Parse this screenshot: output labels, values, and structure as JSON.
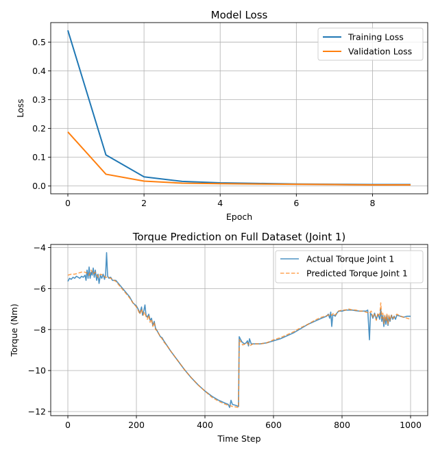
{
  "chart_data": [
    {
      "type": "line",
      "title": "Model Loss",
      "xlabel": "Epoch",
      "ylabel": "Loss",
      "xlim": [
        -0.45,
        9.45
      ],
      "ylim": [
        -0.027,
        0.568
      ],
      "xticks": [
        0,
        2,
        4,
        6,
        8
      ],
      "xtick_labels": [
        "0",
        "2",
        "4",
        "6",
        "8"
      ],
      "yticks": [
        0.0,
        0.1,
        0.2,
        0.3,
        0.4,
        0.5
      ],
      "ytick_labels": [
        "0.0",
        "0.1",
        "0.2",
        "0.3",
        "0.4",
        "0.5"
      ],
      "grid": true,
      "legend_position": "top-right",
      "x": [
        0,
        1,
        2,
        3,
        4,
        5,
        6,
        7,
        8,
        9
      ],
      "series": [
        {
          "name": "Training Loss",
          "color": "#1f77b4",
          "style": "solid",
          "values": [
            0.541,
            0.108,
            0.032,
            0.016,
            0.011,
            0.009,
            0.007,
            0.006,
            0.005,
            0.005
          ]
        },
        {
          "name": "Validation Loss",
          "color": "#ff7f0e",
          "style": "solid",
          "values": [
            0.188,
            0.041,
            0.017,
            0.01,
            0.008,
            0.007,
            0.006,
            0.005,
            0.004,
            0.004
          ]
        }
      ]
    },
    {
      "type": "line",
      "title": "Torque Prediction on Full Dataset (Joint 1)",
      "xlabel": "Time Step",
      "ylabel": "Torque (Nm)",
      "xlim": [
        -50,
        1050
      ],
      "ylim": [
        -12.2,
        -3.85
      ],
      "xticks": [
        0,
        200,
        400,
        600,
        800,
        1000
      ],
      "xtick_labels": [
        "0",
        "200",
        "400",
        "600",
        "800",
        "1000"
      ],
      "yticks": [
        -12,
        -10,
        -8,
        -6,
        -4
      ],
      "ytick_labels": [
        "−12",
        "−10",
        "−8",
        "−6",
        "−4"
      ],
      "grid": true,
      "legend_position": "top-right",
      "series": [
        {
          "name": "Actual Torque Joint 1",
          "color": "#1f77b4",
          "style": "solid",
          "points": [
            [
              0,
              -5.65
            ],
            [
              5,
              -5.5
            ],
            [
              10,
              -5.55
            ],
            [
              15,
              -5.45
            ],
            [
              20,
              -5.5
            ],
            [
              25,
              -5.4
            ],
            [
              30,
              -5.45
            ],
            [
              35,
              -5.5
            ],
            [
              40,
              -5.4
            ],
            [
              45,
              -5.45
            ],
            [
              50,
              -5.35
            ],
            [
              53,
              -5.6
            ],
            [
              56,
              -5.1
            ],
            [
              59,
              -5.5
            ],
            [
              62,
              -4.95
            ],
            [
              65,
              -5.5
            ],
            [
              68,
              -5.2
            ],
            [
              71,
              -5.35
            ],
            [
              74,
              -5.0
            ],
            [
              77,
              -5.45
            ],
            [
              80,
              -5.1
            ],
            [
              84,
              -5.6
            ],
            [
              88,
              -5.3
            ],
            [
              91,
              -5.75
            ],
            [
              95,
              -5.35
            ],
            [
              99,
              -5.5
            ],
            [
              103,
              -5.3
            ],
            [
              107,
              -5.55
            ],
            [
              110,
              -5.35
            ],
            [
              113,
              -4.25
            ],
            [
              116,
              -5.4
            ],
            [
              120,
              -5.5
            ],
            [
              125,
              -5.45
            ],
            [
              130,
              -5.6
            ],
            [
              140,
              -5.6
            ],
            [
              150,
              -5.8
            ],
            [
              160,
              -6.0
            ],
            [
              170,
              -6.2
            ],
            [
              180,
              -6.4
            ],
            [
              190,
              -6.7
            ],
            [
              200,
              -6.85
            ],
            [
              205,
              -7.0
            ],
            [
              210,
              -7.2
            ],
            [
              215,
              -6.9
            ],
            [
              218,
              -7.3
            ],
            [
              222,
              -7.05
            ],
            [
              225,
              -6.8
            ],
            [
              228,
              -7.3
            ],
            [
              232,
              -7.4
            ],
            [
              236,
              -7.25
            ],
            [
              240,
              -7.55
            ],
            [
              244,
              -7.45
            ],
            [
              248,
              -7.8
            ],
            [
              252,
              -7.6
            ],
            [
              256,
              -7.95
            ],
            [
              260,
              -8.05
            ],
            [
              265,
              -8.2
            ],
            [
              270,
              -8.35
            ],
            [
              275,
              -8.4
            ],
            [
              280,
              -8.55
            ],
            [
              290,
              -8.8
            ],
            [
              300,
              -9.05
            ],
            [
              320,
              -9.5
            ],
            [
              340,
              -9.95
            ],
            [
              360,
              -10.35
            ],
            [
              380,
              -10.7
            ],
            [
              400,
              -11.0
            ],
            [
              420,
              -11.25
            ],
            [
              440,
              -11.45
            ],
            [
              460,
              -11.6
            ],
            [
              468,
              -11.65
            ],
            [
              472,
              -11.8
            ],
            [
              476,
              -11.45
            ],
            [
              480,
              -11.65
            ],
            [
              490,
              -11.7
            ],
            [
              498,
              -11.75
            ],
            [
              500,
              -8.35
            ],
            [
              503,
              -8.45
            ],
            [
              508,
              -8.6
            ],
            [
              515,
              -8.7
            ],
            [
              520,
              -8.65
            ],
            [
              524,
              -8.55
            ],
            [
              527,
              -8.8
            ],
            [
              530,
              -8.45
            ],
            [
              535,
              -8.7
            ],
            [
              545,
              -8.7
            ],
            [
              560,
              -8.7
            ],
            [
              580,
              -8.65
            ],
            [
              600,
              -8.55
            ],
            [
              620,
              -8.45
            ],
            [
              640,
              -8.3
            ],
            [
              660,
              -8.15
            ],
            [
              680,
              -7.95
            ],
            [
              700,
              -7.75
            ],
            [
              720,
              -7.6
            ],
            [
              740,
              -7.45
            ],
            [
              755,
              -7.35
            ],
            [
              760,
              -7.25
            ],
            [
              764,
              -7.45
            ],
            [
              767,
              -7.15
            ],
            [
              770,
              -7.85
            ],
            [
              773,
              -7.3
            ],
            [
              777,
              -7.3
            ],
            [
              780,
              -7.35
            ],
            [
              785,
              -7.2
            ],
            [
              790,
              -7.1
            ],
            [
              800,
              -7.1
            ],
            [
              810,
              -7.05
            ],
            [
              820,
              -7.05
            ],
            [
              830,
              -7.05
            ],
            [
              840,
              -7.08
            ],
            [
              850,
              -7.1
            ],
            [
              860,
              -7.1
            ],
            [
              870,
              -7.1
            ],
            [
              875,
              -7.05
            ],
            [
              880,
              -8.5
            ],
            [
              883,
              -7.2
            ],
            [
              887,
              -7.3
            ],
            [
              890,
              -7.45
            ],
            [
              895,
              -7.2
            ],
            [
              900,
              -7.5
            ],
            [
              905,
              -7.25
            ],
            [
              910,
              -7.5
            ],
            [
              913,
              -7.0
            ],
            [
              916,
              -7.6
            ],
            [
              919,
              -7.3
            ],
            [
              922,
              -7.85
            ],
            [
              925,
              -7.35
            ],
            [
              928,
              -7.75
            ],
            [
              931,
              -7.3
            ],
            [
              934,
              -7.8
            ],
            [
              937,
              -7.35
            ],
            [
              940,
              -7.6
            ],
            [
              944,
              -7.3
            ],
            [
              948,
              -7.5
            ],
            [
              952,
              -7.35
            ],
            [
              956,
              -7.5
            ],
            [
              960,
              -7.3
            ],
            [
              970,
              -7.35
            ],
            [
              980,
              -7.4
            ],
            [
              990,
              -7.35
            ],
            [
              1000,
              -7.35
            ]
          ]
        },
        {
          "name": "Predicted Torque Joint 1",
          "color": "#ff7f0e",
          "style": "dashed",
          "points": [
            [
              0,
              -5.35
            ],
            [
              10,
              -5.3
            ],
            [
              20,
              -5.3
            ],
            [
              30,
              -5.25
            ],
            [
              40,
              -5.2
            ],
            [
              50,
              -5.2
            ],
            [
              56,
              -5.25
            ],
            [
              62,
              -5.35
            ],
            [
              68,
              -5.1
            ],
            [
              74,
              -5.3
            ],
            [
              80,
              -5.2
            ],
            [
              88,
              -5.45
            ],
            [
              95,
              -5.3
            ],
            [
              103,
              -5.35
            ],
            [
              110,
              -5.45
            ],
            [
              120,
              -5.45
            ],
            [
              130,
              -5.55
            ],
            [
              140,
              -5.65
            ],
            [
              150,
              -5.85
            ],
            [
              160,
              -6.05
            ],
            [
              170,
              -6.25
            ],
            [
              180,
              -6.45
            ],
            [
              190,
              -6.7
            ],
            [
              200,
              -6.9
            ],
            [
              205,
              -7.05
            ],
            [
              210,
              -7.25
            ],
            [
              215,
              -7.0
            ],
            [
              220,
              -7.3
            ],
            [
              224,
              -7.15
            ],
            [
              228,
              -7.35
            ],
            [
              232,
              -7.5
            ],
            [
              236,
              -7.3
            ],
            [
              240,
              -7.65
            ],
            [
              244,
              -7.5
            ],
            [
              248,
              -7.85
            ],
            [
              252,
              -7.65
            ],
            [
              256,
              -8.0
            ],
            [
              260,
              -8.05
            ],
            [
              265,
              -8.2
            ],
            [
              270,
              -8.35
            ],
            [
              275,
              -8.45
            ],
            [
              280,
              -8.6
            ],
            [
              290,
              -8.8
            ],
            [
              300,
              -9.05
            ],
            [
              320,
              -9.5
            ],
            [
              340,
              -9.95
            ],
            [
              360,
              -10.35
            ],
            [
              380,
              -10.7
            ],
            [
              400,
              -11.0
            ],
            [
              420,
              -11.3
            ],
            [
              440,
              -11.5
            ],
            [
              460,
              -11.65
            ],
            [
              480,
              -11.75
            ],
            [
              498,
              -11.8
            ],
            [
              500,
              -8.5
            ],
            [
              505,
              -8.6
            ],
            [
              510,
              -8.75
            ],
            [
              518,
              -8.7
            ],
            [
              525,
              -8.65
            ],
            [
              530,
              -8.8
            ],
            [
              540,
              -8.7
            ],
            [
              560,
              -8.7
            ],
            [
              580,
              -8.65
            ],
            [
              600,
              -8.5
            ],
            [
              620,
              -8.4
            ],
            [
              640,
              -8.25
            ],
            [
              660,
              -8.1
            ],
            [
              680,
              -7.9
            ],
            [
              700,
              -7.75
            ],
            [
              720,
              -7.55
            ],
            [
              740,
              -7.4
            ],
            [
              760,
              -7.3
            ],
            [
              765,
              -7.25
            ],
            [
              770,
              -7.3
            ],
            [
              775,
              -7.2
            ],
            [
              780,
              -7.3
            ],
            [
              790,
              -7.1
            ],
            [
              800,
              -7.05
            ],
            [
              810,
              -7.05
            ],
            [
              820,
              -7.0
            ],
            [
              830,
              -7.05
            ],
            [
              840,
              -7.05
            ],
            [
              850,
              -7.1
            ],
            [
              860,
              -7.1
            ],
            [
              870,
              -7.15
            ],
            [
              880,
              -7.2
            ],
            [
              885,
              -7.1
            ],
            [
              890,
              -7.4
            ],
            [
              895,
              -7.25
            ],
            [
              900,
              -7.55
            ],
            [
              905,
              -7.2
            ],
            [
              910,
              -7.3
            ],
            [
              913,
              -6.7
            ],
            [
              916,
              -7.45
            ],
            [
              919,
              -7.2
            ],
            [
              922,
              -7.7
            ],
            [
              925,
              -7.3
            ],
            [
              928,
              -7.6
            ],
            [
              931,
              -7.25
            ],
            [
              934,
              -7.75
            ],
            [
              937,
              -7.3
            ],
            [
              940,
              -7.55
            ],
            [
              945,
              -7.3
            ],
            [
              950,
              -7.45
            ],
            [
              955,
              -7.35
            ],
            [
              960,
              -7.25
            ],
            [
              970,
              -7.35
            ],
            [
              980,
              -7.4
            ],
            [
              990,
              -7.45
            ],
            [
              1000,
              -7.5
            ]
          ]
        }
      ]
    }
  ]
}
